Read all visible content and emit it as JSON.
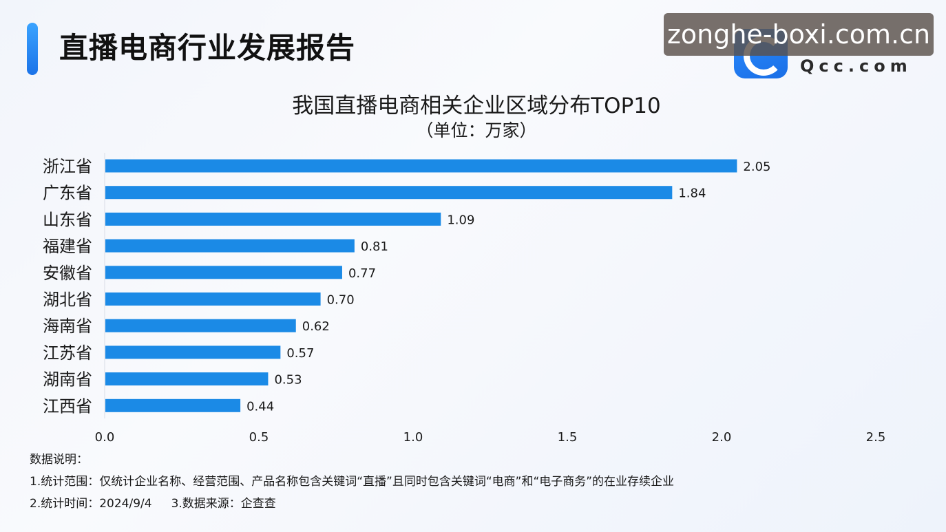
{
  "header": {
    "title": "直播电商行业发展报告",
    "logo_text": "Qcc.com",
    "watermark": "zonghe-boxi.com.cn"
  },
  "chart_data": {
    "type": "bar",
    "orientation": "horizontal",
    "title": "我国直播电商相关企业区域分布TOP10",
    "subtitle": "（单位：万家）",
    "categories": [
      "浙江省",
      "广东省",
      "山东省",
      "福建省",
      "安徽省",
      "湖北省",
      "海南省",
      "江苏省",
      "湖南省",
      "江西省"
    ],
    "values": [
      2.05,
      1.84,
      1.09,
      0.81,
      0.77,
      0.7,
      0.62,
      0.57,
      0.53,
      0.44
    ],
    "value_labels": [
      "2.05",
      "1.84",
      "1.09",
      "0.81",
      "0.77",
      "0.70",
      "0.62",
      "0.57",
      "0.53",
      "0.44"
    ],
    "xlim": [
      0,
      2.5
    ],
    "xticks": [
      "0.0",
      "0.5",
      "1.0",
      "1.5",
      "2.0",
      "2.5"
    ],
    "bar_color": "#1b8ae6",
    "grid": false
  },
  "notes": {
    "heading": "数据说明：",
    "line1": "1.统计范围：仅统计企业名称、经营范围、产品名称包含关键词“直播”且同时包含关键词“电商”和“电子商务”的在业存续企业",
    "line2a": "2.统计时间：2024/9/4",
    "line2b": "3.数据来源：企查查"
  }
}
